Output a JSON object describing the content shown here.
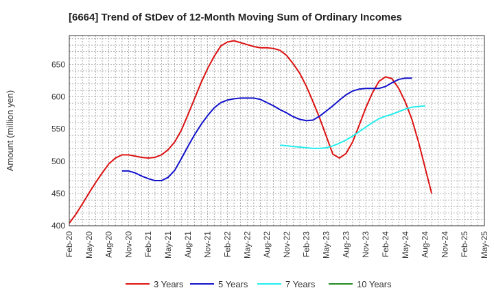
{
  "chart_data": {
    "type": "line",
    "title": "[6664]  Trend of StDev of 12-Month Moving Sum of Ordinary Incomes",
    "xlabel": "",
    "ylabel": "Amount (million yen)",
    "ylim": [
      400,
      695
    ],
    "yticks": [
      400,
      450,
      500,
      550,
      600,
      650
    ],
    "x_range": [
      0,
      63
    ],
    "xticks": [
      {
        "label": "Feb-20",
        "i": 0
      },
      {
        "label": "May-20",
        "i": 3
      },
      {
        "label": "Aug-20",
        "i": 6
      },
      {
        "label": "Nov-20",
        "i": 9
      },
      {
        "label": "Feb-21",
        "i": 12
      },
      {
        "label": "May-21",
        "i": 15
      },
      {
        "label": "Aug-21",
        "i": 18
      },
      {
        "label": "Nov-21",
        "i": 21
      },
      {
        "label": "Feb-22",
        "i": 24
      },
      {
        "label": "May-22",
        "i": 27
      },
      {
        "label": "Aug-22",
        "i": 30
      },
      {
        "label": "Nov-22",
        "i": 33
      },
      {
        "label": "Feb-23",
        "i": 36
      },
      {
        "label": "May-23",
        "i": 39
      },
      {
        "label": "Aug-23",
        "i": 42
      },
      {
        "label": "Nov-23",
        "i": 45
      },
      {
        "label": "Feb-24",
        "i": 48
      },
      {
        "label": "May-24",
        "i": 51
      },
      {
        "label": "Aug-24",
        "i": 54
      },
      {
        "label": "Nov-24",
        "i": 57
      },
      {
        "label": "Feb-25",
        "i": 60
      },
      {
        "label": "May-25",
        "i": 63
      }
    ],
    "series": [
      {
        "name": "3 Years",
        "color": "#dd1111",
        "start": 0,
        "values": [
          404,
          418,
          434,
          451,
          467,
          482,
          496,
          505,
          510,
          510,
          508,
          506,
          505,
          506,
          510,
          518,
          530,
          548,
          572,
          597,
          622,
          644,
          663,
          679,
          685,
          687,
          684,
          681,
          678,
          676,
          676,
          675,
          672,
          664,
          651,
          636,
          616,
          592,
          567,
          539,
          511,
          505,
          512,
          530,
          556,
          583,
          606,
          624,
          631,
          628,
          613,
          592,
          565,
          530,
          490,
          450
        ]
      },
      {
        "name": "5 Years",
        "color": "#1111cc",
        "start": 8,
        "values": [
          485,
          485,
          482,
          477,
          473,
          470,
          470,
          475,
          486,
          504,
          523,
          541,
          557,
          571,
          583,
          591,
          595,
          597,
          598,
          598,
          598,
          596,
          591,
          586,
          580,
          575,
          569,
          565,
          563,
          564,
          570,
          578,
          586,
          595,
          603,
          609,
          612,
          613,
          613,
          613,
          616,
          622,
          627,
          629,
          629
        ]
      },
      {
        "name": "7 Years",
        "color": "#22eeee",
        "start": 32,
        "values": [
          525,
          524,
          523,
          522,
          521,
          520,
          520,
          521,
          524,
          528,
          533,
          539,
          546,
          553,
          560,
          566,
          570,
          573,
          577,
          581,
          584,
          585,
          586
        ]
      },
      {
        "name": "10 Years",
        "color": "#228822",
        "start": 0,
        "values": []
      }
    ]
  }
}
